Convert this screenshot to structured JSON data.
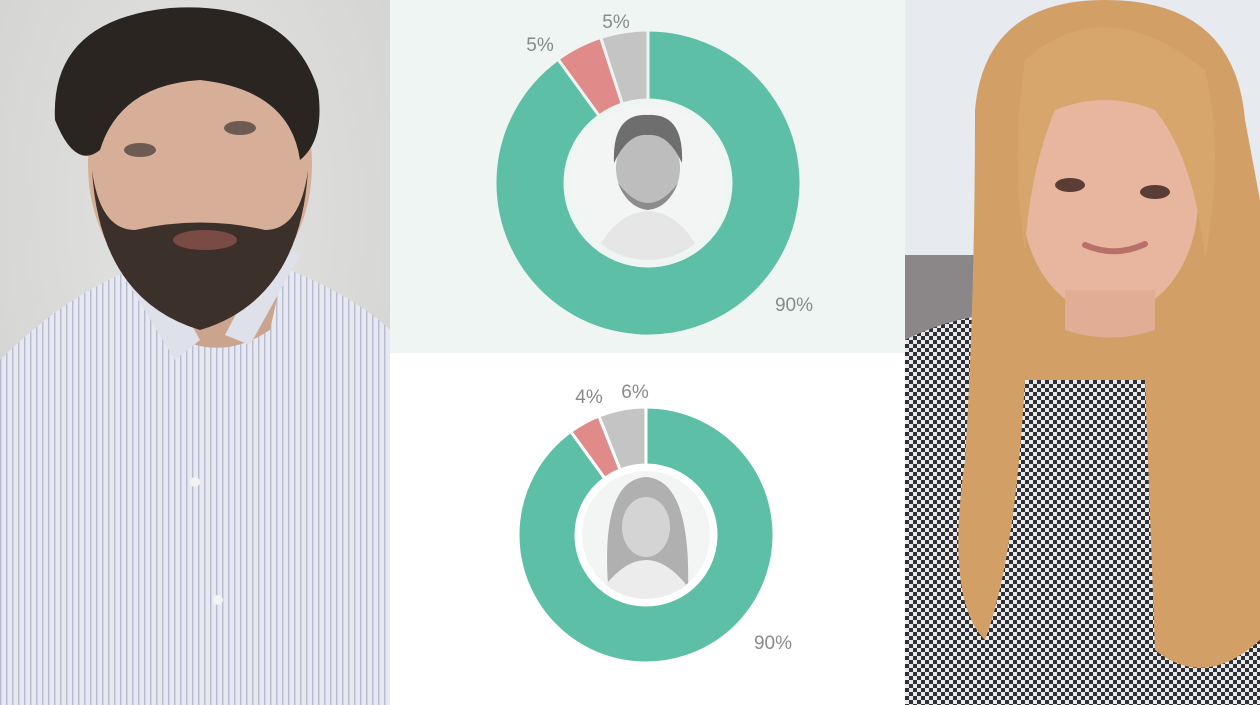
{
  "colors": {
    "favorable": "#5dbfa6",
    "unfavorable": "#e08a8a",
    "undecided": "#c4c4c4",
    "label": "#8a8a8a",
    "top_panel_bg": "#eef5f3",
    "bottom_panel_bg": "#ffffff"
  },
  "photos": {
    "left": {
      "subject": "man with dark hair and beard, light striped shirt"
    },
    "right": {
      "subject": "woman with long blonde hair, houndstooth top"
    }
  },
  "chart_data": [
    {
      "type": "pie",
      "variant": "donut",
      "title": "",
      "center_image": "grayscale portrait of bearded man",
      "categories": [
        "green",
        "red",
        "gray"
      ],
      "values": [
        90,
        5,
        5
      ],
      "labels": [
        "90%",
        "5%",
        "5%"
      ],
      "colors": [
        "#5dbfa6",
        "#e08a8a",
        "#c4c4c4"
      ],
      "start_angle": "12 o'clock, clockwise (green first)",
      "legend": "none"
    },
    {
      "type": "pie",
      "variant": "donut",
      "title": "",
      "center_image": "grayscale portrait of blonde woman",
      "categories": [
        "green",
        "red",
        "gray"
      ],
      "values": [
        90,
        4,
        6
      ],
      "labels": [
        "90%",
        "4%",
        "6%"
      ],
      "colors": [
        "#5dbfa6",
        "#e08a8a",
        "#c4c4c4"
      ],
      "start_angle": "12 o'clock, clockwise (green first)",
      "legend": "none"
    }
  ]
}
